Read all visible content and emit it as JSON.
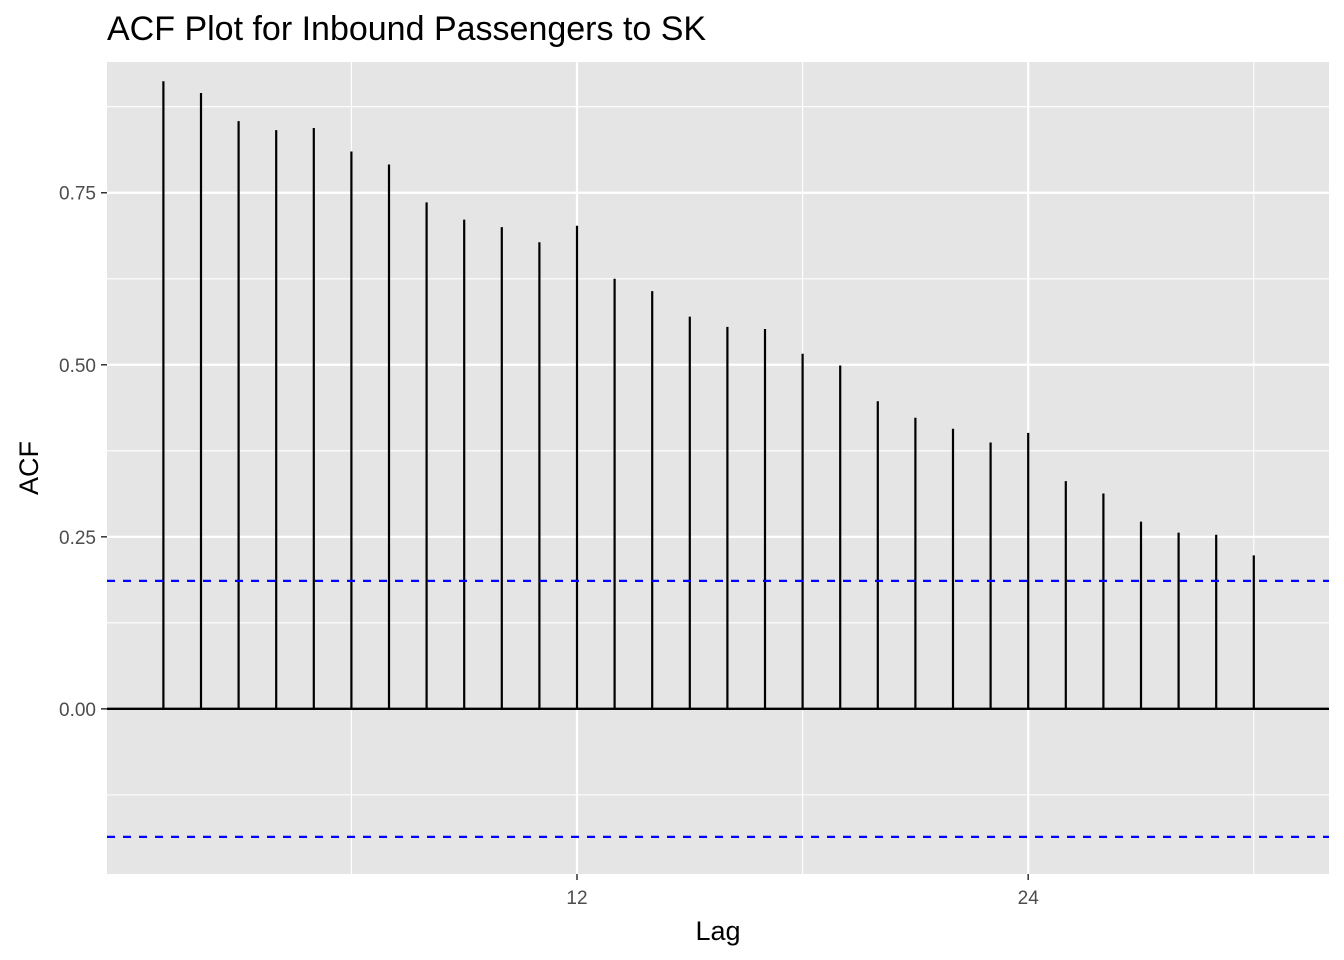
{
  "chart_data": {
    "type": "bar",
    "title": "ACF Plot for Inbound Passengers to SK",
    "xlabel": "Lag",
    "ylabel": "ACF",
    "x": [
      1,
      2,
      3,
      4,
      5,
      6,
      7,
      8,
      9,
      10,
      11,
      12,
      13,
      14,
      15,
      16,
      17,
      18,
      19,
      20,
      21,
      22,
      23,
      24,
      25,
      26,
      27,
      28,
      29,
      30
    ],
    "values": [
      0.912,
      0.895,
      0.854,
      0.841,
      0.844,
      0.81,
      0.791,
      0.736,
      0.711,
      0.7,
      0.678,
      0.702,
      0.625,
      0.607,
      0.57,
      0.555,
      0.552,
      0.516,
      0.499,
      0.447,
      0.423,
      0.407,
      0.387,
      0.401,
      0.331,
      0.313,
      0.272,
      0.256,
      0.253,
      0.223
    ],
    "confidence_bounds": [
      0.186,
      -0.186
    ],
    "xlim": [
      -0.5,
      32
    ],
    "ylim": [
      -0.24,
      0.94
    ],
    "x_ticks": [
      12,
      24
    ],
    "y_ticks": [
      0.0,
      0.25,
      0.5,
      0.75
    ],
    "x_tick_labels": [
      "12",
      "24"
    ],
    "y_tick_labels": [
      "0.00",
      "0.25",
      "0.50",
      "0.75"
    ],
    "grid": true,
    "colors": {
      "panel_background": "#e5e5e5",
      "grid": "#ffffff",
      "bars": "#000000",
      "confidence_line": "#0000ff",
      "zero_line": "#000000"
    }
  }
}
